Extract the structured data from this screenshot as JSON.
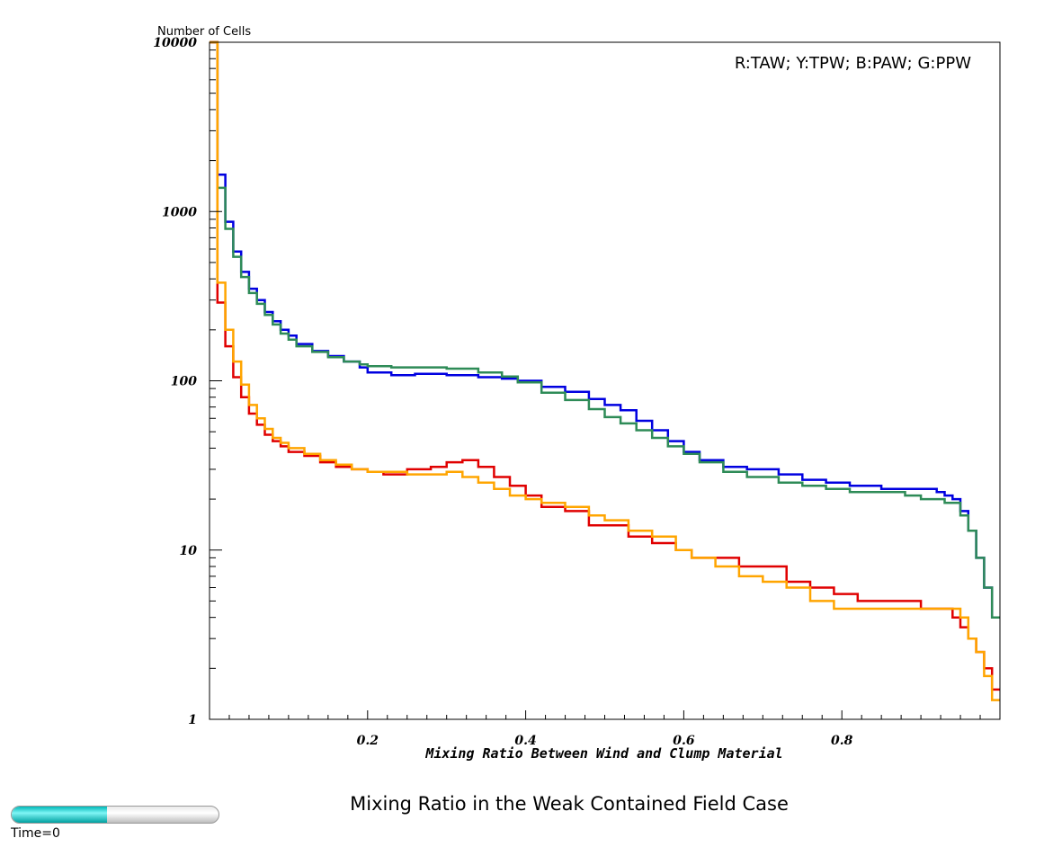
{
  "title": "Mixing Ratio in the Weak Contained Field Case",
  "time_label": "Time=0",
  "time_slider": {
    "fraction": 0.46
  },
  "chart_data": {
    "type": "line",
    "step": true,
    "ylabel": "Number of Cells",
    "xlabel": "Mixing Ratio Between Wind and Clump Material",
    "legend_text": "R:TAW; Y:TPW; B:PAW; G:PPW",
    "legend_position": "top-right",
    "xlim": [
      0,
      1
    ],
    "ylim": [
      1,
      10000
    ],
    "yscale": "log",
    "xticks": [
      0.2,
      0.4,
      0.6,
      0.8
    ],
    "xtick_labels": [
      "0.2",
      "0.4",
      "0.6",
      "0.8"
    ],
    "yticks": [
      1,
      10,
      100,
      1000,
      10000
    ],
    "ytick_labels": [
      "1",
      "10",
      "100",
      "1000",
      "10000"
    ],
    "grid": false,
    "series": [
      {
        "name": "PAW",
        "color": "#0000e0",
        "x": [
          0.0,
          0.005,
          0.01,
          0.02,
          0.03,
          0.04,
          0.05,
          0.06,
          0.07,
          0.08,
          0.09,
          0.1,
          0.11,
          0.13,
          0.15,
          0.17,
          0.19,
          0.2,
          0.23,
          0.26,
          0.3,
          0.34,
          0.37,
          0.39,
          0.42,
          0.45,
          0.48,
          0.5,
          0.52,
          0.54,
          0.56,
          0.58,
          0.6,
          0.62,
          0.65,
          0.68,
          0.72,
          0.75,
          0.78,
          0.81,
          0.85,
          0.88,
          0.9,
          0.91,
          0.92,
          0.93,
          0.94,
          0.95,
          0.96,
          0.97,
          0.98,
          0.99,
          1.0
        ],
        "y": [
          10000,
          10000,
          1650,
          870,
          580,
          440,
          350,
          300,
          255,
          225,
          200,
          185,
          165,
          150,
          140,
          130,
          120,
          112,
          108,
          110,
          108,
          105,
          103,
          100,
          92,
          86,
          78,
          72,
          67,
          58,
          51,
          44,
          38,
          34,
          31,
          30,
          28,
          26,
          25,
          24,
          23,
          23,
          23,
          23,
          22,
          21,
          20,
          17,
          13,
          9,
          6,
          4,
          4
        ]
      },
      {
        "name": "PPW",
        "color": "#2e8b57",
        "x": [
          0.0,
          0.005,
          0.01,
          0.02,
          0.03,
          0.04,
          0.05,
          0.06,
          0.07,
          0.08,
          0.09,
          0.1,
          0.11,
          0.13,
          0.15,
          0.17,
          0.19,
          0.2,
          0.23,
          0.26,
          0.3,
          0.34,
          0.37,
          0.39,
          0.42,
          0.45,
          0.48,
          0.5,
          0.52,
          0.54,
          0.56,
          0.58,
          0.6,
          0.62,
          0.65,
          0.68,
          0.72,
          0.75,
          0.78,
          0.81,
          0.85,
          0.88,
          0.9,
          0.91,
          0.92,
          0.93,
          0.94,
          0.95,
          0.96,
          0.97,
          0.98,
          0.99,
          1.0
        ],
        "y": [
          10000,
          10000,
          1380,
          790,
          540,
          410,
          330,
          285,
          245,
          215,
          190,
          175,
          160,
          148,
          138,
          130,
          125,
          122,
          120,
          120,
          118,
          112,
          106,
          98,
          85,
          77,
          68,
          61,
          56,
          51,
          46,
          41,
          37,
          33,
          29,
          27,
          25,
          24,
          23,
          22,
          22,
          21,
          20,
          20,
          20,
          19,
          19,
          16,
          13,
          9,
          6,
          4,
          3.5
        ]
      },
      {
        "name": "TAW",
        "color": "#e00000",
        "x": [
          0.0,
          0.005,
          0.01,
          0.02,
          0.03,
          0.04,
          0.05,
          0.06,
          0.07,
          0.08,
          0.09,
          0.1,
          0.12,
          0.14,
          0.16,
          0.18,
          0.2,
          0.22,
          0.25,
          0.28,
          0.3,
          0.32,
          0.34,
          0.36,
          0.38,
          0.4,
          0.42,
          0.45,
          0.48,
          0.5,
          0.53,
          0.56,
          0.59,
          0.61,
          0.64,
          0.67,
          0.7,
          0.73,
          0.76,
          0.79,
          0.82,
          0.85,
          0.88,
          0.9,
          0.92,
          0.93,
          0.94,
          0.95,
          0.96,
          0.97,
          0.98,
          0.99,
          1.0
        ],
        "y": [
          10000,
          10000,
          290,
          160,
          105,
          80,
          64,
          55,
          48,
          44,
          41,
          38,
          36,
          33,
          31,
          30,
          29,
          28,
          30,
          31,
          33,
          34,
          31,
          27,
          24,
          21,
          18,
          17,
          14,
          14,
          12,
          11,
          10,
          9,
          9,
          8,
          8,
          6.5,
          6,
          5.5,
          5,
          5,
          5,
          4.5,
          4.5,
          4.5,
          4,
          3.5,
          3,
          2.5,
          2,
          1.5,
          1
        ]
      },
      {
        "name": "TPW",
        "color": "#ffa500",
        "x": [
          0.0,
          0.005,
          0.01,
          0.02,
          0.03,
          0.04,
          0.05,
          0.06,
          0.07,
          0.08,
          0.09,
          0.1,
          0.12,
          0.14,
          0.16,
          0.18,
          0.2,
          0.22,
          0.25,
          0.28,
          0.3,
          0.32,
          0.34,
          0.36,
          0.38,
          0.4,
          0.42,
          0.45,
          0.48,
          0.5,
          0.53,
          0.56,
          0.59,
          0.61,
          0.64,
          0.67,
          0.7,
          0.73,
          0.76,
          0.79,
          0.82,
          0.85,
          0.88,
          0.9,
          0.92,
          0.93,
          0.94,
          0.95,
          0.96,
          0.97,
          0.98,
          0.99,
          1.0
        ],
        "y": [
          10000,
          10000,
          380,
          200,
          130,
          95,
          72,
          60,
          52,
          46,
          43,
          40,
          37,
          34,
          32,
          30,
          29,
          29,
          28,
          28,
          29,
          27,
          25,
          23,
          21,
          20,
          19,
          18,
          16,
          15,
          13,
          12,
          10,
          9,
          8,
          7,
          6.5,
          6,
          5,
          4.5,
          4.5,
          4.5,
          4.5,
          4.5,
          4.5,
          4.5,
          4.5,
          4,
          3,
          2.5,
          1.8,
          1.3,
          1
        ]
      }
    ]
  }
}
